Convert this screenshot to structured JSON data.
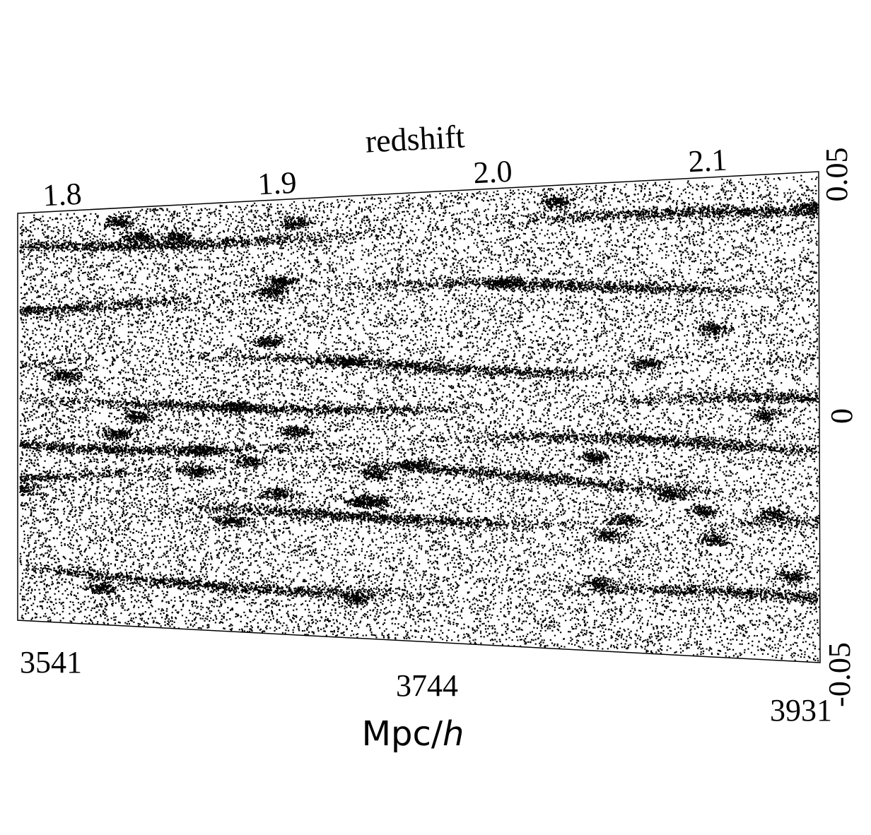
{
  "chart_data": {
    "type": "scatter",
    "description_note": "",
    "top_axis": {
      "label": "redshift",
      "ticks": [
        "1.8",
        "1.9",
        "2.0",
        "2.1"
      ]
    },
    "bottom_axis": {
      "label_main": "Mpc/",
      "label_italic": "h",
      "ticks": [
        "3541",
        "3744",
        "3931"
      ]
    },
    "right_axis": {
      "ticks": [
        "0.05",
        "0",
        "-0.05"
      ]
    },
    "x_range_mpc_h": [
      3541,
      3931
    ],
    "y_range": [
      -0.05,
      0.05
    ],
    "points": {
      "color": "#000000",
      "bands_y": [
        0.042,
        0.028,
        0.012,
        0.003,
        -0.006,
        -0.013,
        -0.022,
        -0.038
      ]
    }
  }
}
